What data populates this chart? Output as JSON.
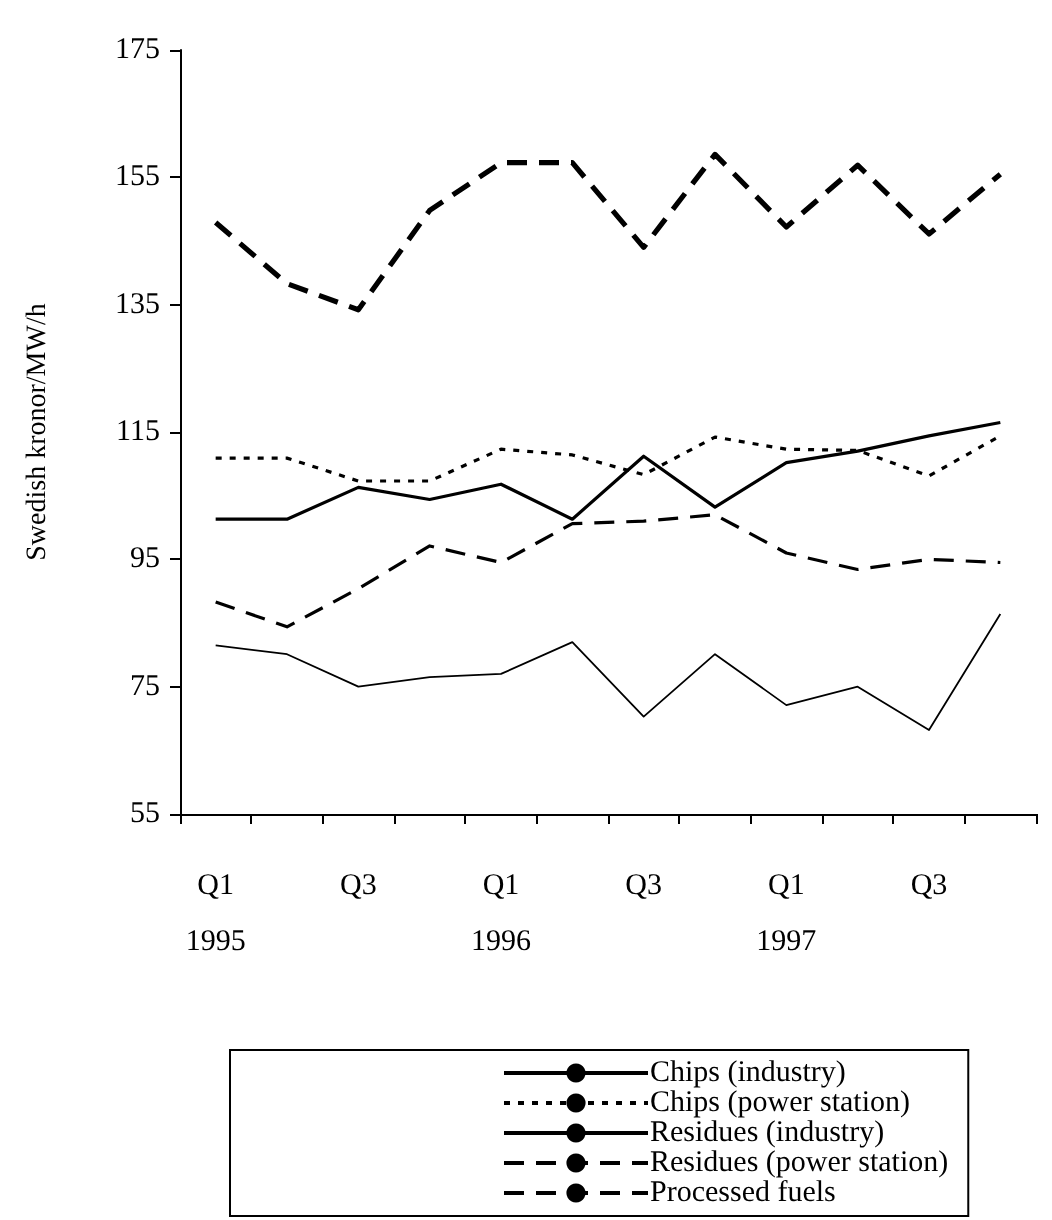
{
  "chart_data": {
    "type": "line",
    "ylabel": "Swedish kronor/MW/h",
    "categories": [
      "Q1\n1995",
      null,
      "Q3",
      null,
      "Q1\n1996",
      null,
      "Q3",
      null,
      "Q1\n1997",
      null,
      "Q3",
      null
    ],
    "ylim": [
      55,
      175
    ],
    "yticks": [
      55,
      75,
      95,
      115,
      135,
      155,
      175
    ],
    "grid": false,
    "legend": "bottom",
    "marker": "none",
    "series": [
      {
        "name": "Chips (industry)",
        "color": "#000000",
        "line_style": "solid",
        "values": [
          101.3,
          101.3,
          106.3,
          104.4,
          106.8,
          101.3,
          111.2,
          103.2,
          110.2,
          112,
          114.4,
          116.5
        ]
      },
      {
        "name": "Chips (power station)",
        "color": "#000000",
        "line_style": "dotted",
        "values": [
          110.9,
          110.9,
          107.3,
          107.3,
          112.3,
          111.4,
          108.3,
          114.2,
          112.3,
          112.1,
          108.1,
          114.4
        ]
      },
      {
        "name": "Residues (industry)",
        "color": "#000000",
        "line_style": "solid",
        "values": [
          81.5,
          80.1,
          75,
          76.5,
          77,
          82,
          70.3,
          80.1,
          72.1,
          75,
          68.2,
          86.4
        ]
      },
      {
        "name": "Residues (power station)",
        "color": "#000000",
        "line_style": "dashed",
        "values": [
          88.3,
          84.4,
          90.4,
          97.1,
          94.5,
          100.6,
          101,
          102,
          96,
          93.4,
          95,
          94.5
        ]
      },
      {
        "name": "Processed fuels",
        "color": "#000000",
        "line_style": "dashed",
        "values": [
          147.9,
          138.3,
          134.2,
          149.8,
          157.3,
          157.3,
          144,
          158.6,
          147.2,
          156.9,
          146.1,
          155.5
        ]
      }
    ]
  }
}
